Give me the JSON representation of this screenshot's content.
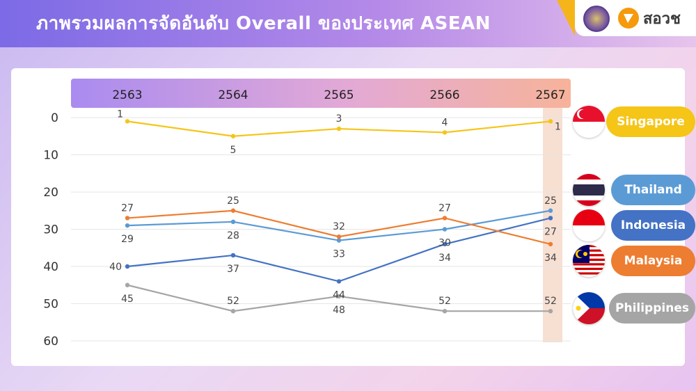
{
  "header": {
    "title": "ภาพรวมผลการจัดอันดับ Overall ของประเทศ ASEAN",
    "brand_text": "สอวช"
  },
  "colors": {
    "Singapore": "#f5c518",
    "Thailand": "#5b9bd5",
    "Indonesia": "#4472c4",
    "Malaysia": "#ed7d31",
    "Philippines": "#a5a5a5"
  },
  "legend": [
    {
      "label": "Singapore",
      "flag": "singapore-flag"
    },
    {
      "label": "Thailand",
      "flag": "thailand-flag"
    },
    {
      "label": "Indonesia",
      "flag": "indonesia-flag"
    },
    {
      "label": "Malaysia",
      "flag": "malaysia-flag"
    },
    {
      "label": "Philippines",
      "flag": "philippines-flag"
    }
  ],
  "chart_data": {
    "type": "line",
    "title": "",
    "xlabel": "",
    "ylabel": "",
    "categories": [
      "2563",
      "2564",
      "2565",
      "2566",
      "2567"
    ],
    "y_ticks": [
      "0",
      "10",
      "20",
      "30",
      "40",
      "50",
      "60"
    ],
    "ylim": [
      0,
      60
    ],
    "y_inverted": true,
    "grid": true,
    "highlight_category": "2567",
    "series": [
      {
        "name": "Singapore",
        "values": [
          1,
          5,
          3,
          4,
          1
        ]
      },
      {
        "name": "Thailand",
        "values": [
          29,
          28,
          33,
          30,
          25
        ]
      },
      {
        "name": "Indonesia",
        "values": [
          40,
          37,
          44,
          34,
          27
        ]
      },
      {
        "name": "Malaysia",
        "values": [
          27,
          25,
          32,
          27,
          34
        ]
      },
      {
        "name": "Philippines",
        "values": [
          45,
          52,
          48,
          52,
          52
        ]
      }
    ]
  }
}
